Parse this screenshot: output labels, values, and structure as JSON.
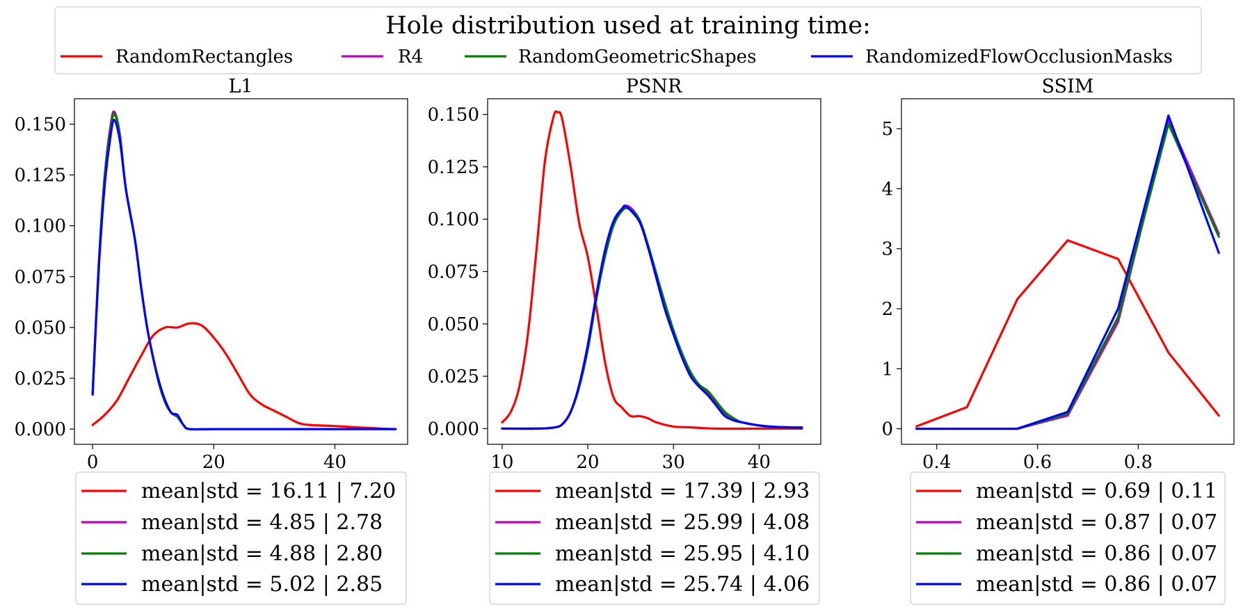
{
  "legend": {
    "title": "Hole distribution used at training time:",
    "entries": [
      {
        "label": "RandomRectangles",
        "color": "#ff0000"
      },
      {
        "label": "R4",
        "color": "#bf00bf"
      },
      {
        "label": "RandomGeometricShapes",
        "color": "#008000"
      },
      {
        "label": "RandomizedFlowOcclusionMasks",
        "color": "#0000ff"
      }
    ]
  },
  "chart_data": [
    {
      "type": "line",
      "title": "L1",
      "xlim": [
        -3,
        52
      ],
      "ylim": [
        -0.0075,
        0.1625
      ],
      "xticks": [
        0,
        20,
        40
      ],
      "xtick_labels": [
        "0",
        "20",
        "40"
      ],
      "yticks": [
        0,
        0.025,
        0.05,
        0.075,
        0.1,
        0.125,
        0.15
      ],
      "ytick_labels": [
        "0.000",
        "0.025",
        "0.050",
        "0.075",
        "0.100",
        "0.125",
        "0.150"
      ],
      "series": [
        {
          "name": "RandomRectangles",
          "color": "#ff0000",
          "x": [
            0,
            2,
            4,
            6,
            8,
            10,
            12,
            14,
            16,
            18,
            20,
            22,
            24,
            26,
            28,
            30,
            32,
            34,
            36,
            40,
            44,
            48,
            50
          ],
          "y": [
            0.002,
            0.007,
            0.014,
            0.025,
            0.036,
            0.046,
            0.05,
            0.05,
            0.052,
            0.051,
            0.045,
            0.037,
            0.027,
            0.017,
            0.012,
            0.009,
            0.006,
            0.003,
            0.002,
            0.0015,
            0.0008,
            0.0002,
            0.0
          ]
        },
        {
          "name": "R4",
          "color": "#bf00bf",
          "x": [
            0,
            1,
            2,
            3,
            3.6,
            4.5,
            5.5,
            7,
            8,
            9,
            10,
            11,
            12,
            13,
            14,
            15,
            16,
            20,
            30,
            40,
            50
          ],
          "y": [
            0.017,
            0.08,
            0.125,
            0.15,
            0.156,
            0.145,
            0.118,
            0.093,
            0.07,
            0.05,
            0.035,
            0.022,
            0.013,
            0.008,
            0.006,
            0.002,
            0.0,
            0.0,
            0.0,
            0.0,
            0.0
          ]
        },
        {
          "name": "RandomGeometricShapes",
          "color": "#008000",
          "x": [
            0,
            1,
            2,
            3,
            3.6,
            4.5,
            5.5,
            7,
            8,
            9,
            10,
            11,
            12,
            13,
            14,
            15,
            16,
            20,
            30,
            40,
            50
          ],
          "y": [
            0.017,
            0.08,
            0.124,
            0.148,
            0.155,
            0.144,
            0.118,
            0.093,
            0.07,
            0.05,
            0.035,
            0.022,
            0.013,
            0.008,
            0.006,
            0.002,
            0.0,
            0.0,
            0.0,
            0.0,
            0.0
          ]
        },
        {
          "name": "RandomizedFlowOcclusionMasks",
          "color": "#0000ff",
          "x": [
            0,
            1,
            2,
            3,
            3.6,
            4.5,
            5.5,
            7,
            8,
            9,
            10,
            11,
            12,
            13,
            14,
            15,
            16,
            20,
            30,
            40,
            50
          ],
          "y": [
            0.017,
            0.078,
            0.12,
            0.145,
            0.152,
            0.142,
            0.118,
            0.093,
            0.07,
            0.05,
            0.035,
            0.023,
            0.014,
            0.008,
            0.007,
            0.002,
            0.0,
            0.0,
            0.0,
            0.0,
            0.0
          ]
        }
      ],
      "stats": [
        {
          "text": "mean|std = 16.11 | 7.20",
          "color": "#ff0000"
        },
        {
          "text": "mean|std = 4.85 | 2.78",
          "color": "#bf00bf"
        },
        {
          "text": "mean|std = 4.88 | 2.80",
          "color": "#008000"
        },
        {
          "text": "mean|std = 5.02 | 2.85",
          "color": "#0000ff"
        }
      ]
    },
    {
      "type": "line",
      "title": "PSNR",
      "xlim": [
        8.3,
        47.2
      ],
      "ylim": [
        -0.0075,
        0.1575
      ],
      "xticks": [
        10,
        20,
        30,
        40
      ],
      "xtick_labels": [
        "10",
        "20",
        "30",
        "40"
      ],
      "yticks": [
        0,
        0.025,
        0.05,
        0.075,
        0.1,
        0.125,
        0.15
      ],
      "ytick_labels": [
        "0.000",
        "0.025",
        "0.050",
        "0.075",
        "0.100",
        "0.125",
        "0.150"
      ],
      "series": [
        {
          "name": "RandomRectangles",
          "color": "#ff0000",
          "x": [
            10,
            11,
            12,
            13,
            14,
            15,
            16,
            16.5,
            17,
            18,
            19,
            20,
            21,
            22,
            23,
            24,
            25,
            26,
            27,
            28,
            30,
            32,
            35,
            40,
            45
          ],
          "y": [
            0.003,
            0.008,
            0.02,
            0.045,
            0.085,
            0.128,
            0.149,
            0.151,
            0.148,
            0.125,
            0.098,
            0.082,
            0.058,
            0.032,
            0.015,
            0.01,
            0.006,
            0.006,
            0.005,
            0.003,
            0.001,
            0.0006,
            0.0,
            0.0,
            0.0
          ]
        },
        {
          "name": "R4",
          "color": "#bf00bf",
          "x": [
            10,
            14,
            16,
            17,
            18,
            19,
            20,
            21,
            22,
            23,
            24,
            24.8,
            26,
            27,
            28,
            29,
            30,
            31,
            32,
            33,
            34,
            35,
            36,
            37,
            38,
            40,
            42,
            45
          ],
          "y": [
            0.0,
            0.0,
            0.0005,
            0.002,
            0.008,
            0.02,
            0.038,
            0.062,
            0.083,
            0.098,
            0.105,
            0.106,
            0.1,
            0.088,
            0.073,
            0.058,
            0.046,
            0.035,
            0.026,
            0.02,
            0.017,
            0.012,
            0.007,
            0.004,
            0.003,
            0.0015,
            0.0008,
            0.0005
          ]
        },
        {
          "name": "RandomGeometricShapes",
          "color": "#008000",
          "x": [
            10,
            14,
            16,
            17,
            18,
            19,
            20,
            21,
            22,
            23,
            24,
            24.8,
            26,
            27,
            28,
            29,
            30,
            31,
            32,
            33,
            34,
            35,
            36,
            37,
            38,
            40,
            42,
            45
          ],
          "y": [
            0.0,
            0.0,
            0.0005,
            0.002,
            0.008,
            0.02,
            0.038,
            0.062,
            0.082,
            0.097,
            0.104,
            0.105,
            0.1,
            0.088,
            0.074,
            0.06,
            0.047,
            0.036,
            0.027,
            0.021,
            0.018,
            0.013,
            0.008,
            0.005,
            0.003,
            0.0015,
            0.0008,
            0.0005
          ]
        },
        {
          "name": "RandomizedFlowOcclusionMasks",
          "color": "#0000ff",
          "x": [
            10,
            14,
            16,
            17,
            18,
            19,
            20,
            21,
            22,
            23,
            24,
            24.5,
            26,
            27,
            28,
            29,
            30,
            31,
            32,
            33,
            34,
            35,
            36,
            37,
            38,
            40,
            42,
            45
          ],
          "y": [
            0.0,
            0.0,
            0.0005,
            0.002,
            0.008,
            0.021,
            0.04,
            0.064,
            0.085,
            0.099,
            0.105,
            0.106,
            0.099,
            0.087,
            0.072,
            0.057,
            0.045,
            0.034,
            0.025,
            0.02,
            0.016,
            0.011,
            0.006,
            0.004,
            0.003,
            0.0015,
            0.0008,
            0.0005
          ]
        }
      ],
      "stats": [
        {
          "text": "mean|std = 17.39 | 2.93",
          "color": "#ff0000"
        },
        {
          "text": "mean|std = 25.99 | 4.08",
          "color": "#bf00bf"
        },
        {
          "text": "mean|std = 25.95 | 4.10",
          "color": "#008000"
        },
        {
          "text": "mean|std = 25.74 | 4.06",
          "color": "#0000ff"
        }
      ]
    },
    {
      "type": "line",
      "title": "SSIM",
      "xlim": [
        0.33,
        0.99
      ],
      "ylim": [
        -0.26,
        5.5
      ],
      "xticks": [
        0.4,
        0.6,
        0.8
      ],
      "xtick_labels": [
        "0.4",
        "0.6",
        "0.8"
      ],
      "yticks": [
        0,
        1,
        2,
        3,
        4,
        5
      ],
      "ytick_labels": [
        "0",
        "1",
        "2",
        "3",
        "4",
        "5"
      ],
      "series": [
        {
          "name": "RandomRectangles",
          "color": "#ff0000",
          "x": [
            0.36,
            0.46,
            0.56,
            0.66,
            0.76,
            0.86,
            0.96
          ],
          "y": [
            0.04,
            0.36,
            2.16,
            3.14,
            2.83,
            1.27,
            0.22
          ]
        },
        {
          "name": "R4",
          "color": "#bf00bf",
          "x": [
            0.36,
            0.46,
            0.56,
            0.66,
            0.76,
            0.86,
            0.96
          ],
          "y": [
            0.0,
            0.0,
            0.0,
            0.22,
            1.78,
            5.15,
            3.25
          ]
        },
        {
          "name": "RandomGeometricShapes",
          "color": "#008000",
          "x": [
            0.36,
            0.46,
            0.56,
            0.66,
            0.76,
            0.86,
            0.96
          ],
          "y": [
            0.0,
            0.0,
            0.0,
            0.25,
            1.86,
            5.08,
            3.2
          ]
        },
        {
          "name": "RandomizedFlowOcclusionMasks",
          "color": "#0000ff",
          "x": [
            0.36,
            0.46,
            0.56,
            0.66,
            0.76,
            0.86,
            0.96
          ],
          "y": [
            0.0,
            0.0,
            0.0,
            0.28,
            2.0,
            5.22,
            2.93
          ]
        }
      ],
      "stats": [
        {
          "text": "mean|std = 0.69 | 0.11",
          "color": "#ff0000"
        },
        {
          "text": "mean|std = 0.87 | 0.07",
          "color": "#bf00bf"
        },
        {
          "text": "mean|std = 0.86 | 0.07",
          "color": "#008000"
        },
        {
          "text": "mean|std = 0.86 | 0.07",
          "color": "#0000ff"
        }
      ]
    }
  ]
}
